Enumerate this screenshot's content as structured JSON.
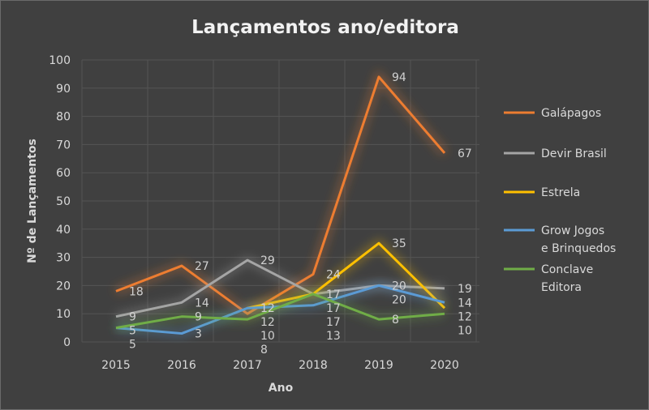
{
  "chart_data": {
    "type": "line",
    "title": "Lançamentos ano/editora",
    "xlabel": "Ano",
    "ylabel": "Nº de Lançamentos",
    "categories": [
      "2015",
      "2016",
      "2017",
      "2018",
      "2019",
      "2020"
    ],
    "ylim": [
      0,
      100
    ],
    "yticks": [
      0,
      10,
      20,
      30,
      40,
      50,
      60,
      70,
      80,
      90,
      100
    ],
    "grid": true,
    "legend_position": "right",
    "series": [
      {
        "name": "Galápagos",
        "color": "#ed7d31",
        "values": [
          18,
          27,
          10,
          24,
          94,
          67
        ]
      },
      {
        "name": "Devir Brasil",
        "color": "#a5a5a5",
        "values": [
          9,
          14,
          29,
          17,
          20,
          19
        ]
      },
      {
        "name": "Estrela",
        "color": "#ffc000",
        "values": [
          null,
          null,
          12,
          17,
          35,
          12
        ]
      },
      {
        "name": "Grow Jogos e Brinquedos",
        "color": "#5b9bd5",
        "values": [
          5,
          3,
          12,
          13,
          20,
          14
        ]
      },
      {
        "name": "Conclave Editora",
        "color": "#70ad47",
        "values": [
          5,
          9,
          8,
          17,
          8,
          10
        ]
      }
    ]
  }
}
